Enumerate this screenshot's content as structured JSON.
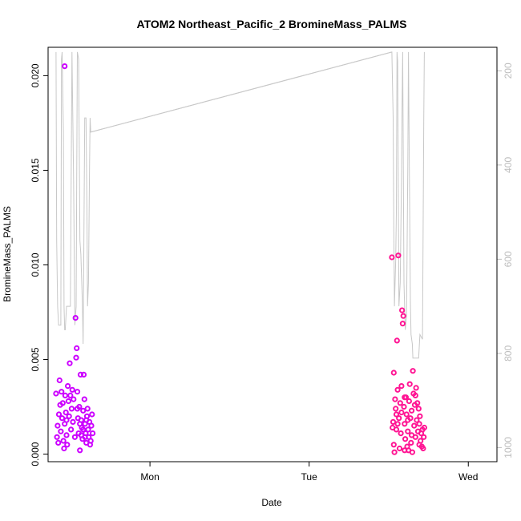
{
  "chart_data": {
    "type": "scatter",
    "title": "ATOM2 Northeast_Pacific_2 BromineMass_PALMS",
    "xlabel": "Date",
    "ylabel": "BromineMass_PALMS",
    "xlim": [
      -0.32,
      1.09
    ],
    "ylim": [
      -0.0004,
      0.0215
    ],
    "x_ticks": [
      {
        "value": 0,
        "label": "Mon"
      },
      {
        "value": 0.5,
        "label": "Tue"
      },
      {
        "value": 1,
        "label": "Wed"
      }
    ],
    "y_ticks": [
      {
        "value": 0.0,
        "label": "0.000"
      },
      {
        "value": 0.005,
        "label": "0.005"
      },
      {
        "value": 0.01,
        "label": "0.010"
      },
      {
        "value": 0.015,
        "label": "0.015"
      },
      {
        "value": 0.02,
        "label": "0.020"
      }
    ],
    "right_axis": {
      "ylim": [
        1030,
        150
      ],
      "ticks": [
        {
          "value": 200,
          "label": "200"
        },
        {
          "value": 400,
          "label": "400"
        },
        {
          "value": 600,
          "label": "600"
        },
        {
          "value": 800,
          "label": "800"
        },
        {
          "value": 1000,
          "label": "1000"
        }
      ],
      "color": "#bdbdbd"
    },
    "series": [
      {
        "kind": "points",
        "color": "#cc00ff",
        "points": [
          [
            -0.295,
            0.0032
          ],
          [
            -0.292,
            0.0009
          ],
          [
            -0.29,
            0.0015
          ],
          [
            -0.288,
            0.0006
          ],
          [
            -0.286,
            0.0021
          ],
          [
            -0.284,
            0.0039
          ],
          [
            -0.282,
            0.0026
          ],
          [
            -0.28,
            0.0012
          ],
          [
            -0.278,
            0.0033
          ],
          [
            -0.276,
            0.0019
          ],
          [
            -0.274,
            0.0027
          ],
          [
            -0.272,
            0.0007
          ],
          [
            -0.27,
            0.0003
          ],
          [
            -0.268,
            0.0016
          ],
          [
            -0.266,
            0.0031
          ],
          [
            -0.264,
            0.0022
          ],
          [
            -0.262,
            0.001
          ],
          [
            -0.26,
            0.0005
          ],
          [
            -0.258,
            0.0036
          ],
          [
            -0.256,
            0.0028
          ],
          [
            -0.254,
            0.002
          ],
          [
            -0.252,
            0.0048
          ],
          [
            -0.25,
            0.0031
          ],
          [
            -0.248,
            0.0013
          ],
          [
            -0.246,
            0.0024
          ],
          [
            -0.244,
            0.0034
          ],
          [
            -0.242,
            0.0017
          ],
          [
            -0.24,
            0.0029
          ],
          [
            -0.236,
            0.0009
          ],
          [
            -0.234,
            0.0072
          ],
          [
            -0.232,
            0.0051
          ],
          [
            -0.23,
            0.0056
          ],
          [
            -0.228,
            0.0033
          ],
          [
            -0.226,
            0.0019
          ],
          [
            -0.224,
            0.0011
          ],
          [
            -0.222,
            0.0025
          ],
          [
            -0.22,
            0.0002
          ],
          [
            -0.218,
            0.0042
          ],
          [
            -0.216,
            0.0018
          ],
          [
            -0.214,
            0.0014
          ],
          [
            -0.212,
            0.0008
          ],
          [
            -0.21,
            0.0023
          ],
          [
            -0.208,
            0.0042
          ],
          [
            -0.206,
            0.0029
          ],
          [
            -0.204,
            0.0016
          ],
          [
            -0.202,
            0.0011
          ],
          [
            -0.2,
            0.0006
          ],
          [
            -0.198,
            0.002
          ],
          [
            -0.196,
            0.0024
          ],
          [
            -0.194,
            0.0013
          ],
          [
            -0.192,
            0.0009
          ],
          [
            -0.19,
            0.0017
          ],
          [
            -0.188,
            0.0005
          ],
          [
            -0.186,
            0.0007
          ],
          [
            -0.184,
            0.0015
          ],
          [
            -0.182,
            0.0021
          ],
          [
            -0.18,
            0.0011
          ],
          [
            -0.268,
            0.0205
          ],
          [
            -0.262,
            0.0018
          ],
          [
            -0.228,
            0.0024
          ],
          [
            -0.22,
            0.0016
          ],
          [
            -0.21,
            0.0013
          ],
          [
            -0.2,
            0.0018
          ],
          [
            -0.204,
            0.0009
          ],
          [
            -0.216,
            0.001
          ]
        ]
      },
      {
        "kind": "points",
        "color": "#ff1493",
        "points": [
          [
            0.76,
            0.0104
          ],
          [
            0.762,
            0.0014
          ],
          [
            0.764,
            0.0017
          ],
          [
            0.766,
            0.0005
          ],
          [
            0.768,
            0.0001
          ],
          [
            0.77,
            0.0029
          ],
          [
            0.772,
            0.0024
          ],
          [
            0.774,
            0.0013
          ],
          [
            0.776,
            0.006
          ],
          [
            0.778,
            0.0034
          ],
          [
            0.78,
            0.0105
          ],
          [
            0.782,
            0.0019
          ],
          [
            0.784,
            0.0003
          ],
          [
            0.786,
            0.0027
          ],
          [
            0.788,
            0.0011
          ],
          [
            0.79,
            0.0036
          ],
          [
            0.792,
            0.0076
          ],
          [
            0.794,
            0.0069
          ],
          [
            0.796,
            0.0073
          ],
          [
            0.798,
            0.0025
          ],
          [
            0.8,
            0.0016
          ],
          [
            0.802,
            0.0008
          ],
          [
            0.804,
            0.003
          ],
          [
            0.806,
            0.0021
          ],
          [
            0.808,
            0.0004
          ],
          [
            0.81,
            0.0012
          ],
          [
            0.812,
            0.0002
          ],
          [
            0.814,
            0.0028
          ],
          [
            0.816,
            0.0037
          ],
          [
            0.818,
            0.0019
          ],
          [
            0.82,
            0.0006
          ],
          [
            0.822,
            0.0023
          ],
          [
            0.824,
            0.0001
          ],
          [
            0.826,
            0.0044
          ],
          [
            0.828,
            0.0032
          ],
          [
            0.83,
            0.0015
          ],
          [
            0.832,
            0.0026
          ],
          [
            0.834,
            0.0009
          ],
          [
            0.836,
            0.0035
          ],
          [
            0.838,
            0.0018
          ],
          [
            0.84,
            0.0027
          ],
          [
            0.842,
            0.0012
          ],
          [
            0.844,
            0.0024
          ],
          [
            0.846,
            0.0016
          ],
          [
            0.848,
            0.002
          ],
          [
            0.85,
            0.0007
          ],
          [
            0.852,
            0.0011
          ],
          [
            0.854,
            0.0004
          ],
          [
            0.856,
            0.0013
          ],
          [
            0.858,
            0.0003
          ],
          [
            0.86,
            0.0009
          ],
          [
            0.862,
            0.0014
          ],
          [
            0.766,
            0.0043
          ],
          [
            0.774,
            0.0021
          ],
          [
            0.79,
            0.0022
          ],
          [
            0.8,
            0.003
          ],
          [
            0.81,
            0.0018
          ],
          [
            0.822,
            0.001
          ],
          [
            0.834,
            0.0031
          ],
          [
            0.846,
            0.0005
          ],
          [
            0.778,
            0.0016
          ],
          [
            0.8,
            0.0002
          ]
        ]
      },
      {
        "kind": "line",
        "axis": "right",
        "color": "#c8c8c8",
        "points": [
          [
            -0.295,
            160
          ],
          [
            -0.293,
            560
          ],
          [
            -0.29,
            700
          ],
          [
            -0.287,
            740
          ],
          [
            -0.283,
            740
          ],
          [
            -0.28,
            740
          ],
          [
            -0.278,
            175
          ],
          [
            -0.276,
            160
          ],
          [
            -0.272,
            330
          ],
          [
            -0.27,
            700
          ],
          [
            -0.268,
            750
          ],
          [
            -0.266,
            750
          ],
          [
            -0.262,
            700
          ],
          [
            -0.258,
            700
          ],
          [
            -0.254,
            700
          ],
          [
            -0.25,
            700
          ],
          [
            -0.245,
            160
          ],
          [
            -0.24,
            430
          ],
          [
            -0.236,
            740
          ],
          [
            -0.232,
            700
          ],
          [
            -0.23,
            430
          ],
          [
            -0.228,
            160
          ],
          [
            -0.224,
            175
          ],
          [
            -0.22,
            560
          ],
          [
            -0.217,
            590
          ],
          [
            -0.212,
            700
          ],
          [
            -0.21,
            780
          ],
          [
            -0.208,
            600
          ],
          [
            -0.205,
            300
          ],
          [
            -0.201,
            300
          ],
          [
            -0.198,
            500
          ],
          [
            -0.196,
            700
          ],
          [
            -0.193,
            650
          ],
          [
            -0.19,
            420
          ],
          [
            -0.188,
            300
          ],
          [
            -0.186,
            330
          ],
          [
            0.76,
            160
          ],
          [
            0.764,
            300
          ],
          [
            0.766,
            530
          ],
          [
            0.768,
            700
          ],
          [
            0.772,
            600
          ],
          [
            0.774,
            500
          ],
          [
            0.776,
            160
          ],
          [
            0.778,
            180
          ],
          [
            0.782,
            700
          ],
          [
            0.786,
            650
          ],
          [
            0.79,
            430
          ],
          [
            0.792,
            280
          ],
          [
            0.794,
            160
          ],
          [
            0.798,
            650
          ],
          [
            0.802,
            750
          ],
          [
            0.806,
            720
          ],
          [
            0.81,
            400
          ],
          [
            0.812,
            160
          ],
          [
            0.815,
            430
          ],
          [
            0.818,
            690
          ],
          [
            0.82,
            760
          ],
          [
            0.824,
            780
          ],
          [
            0.826,
            810
          ],
          [
            0.835,
            810
          ],
          [
            0.84,
            810
          ],
          [
            0.844,
            810
          ],
          [
            0.848,
            760
          ],
          [
            0.856,
            770
          ],
          [
            0.86,
            300
          ],
          [
            0.862,
            160
          ]
        ],
        "bridge": [
          [
            -0.186,
            330
          ],
          [
            0.76,
            160
          ]
        ]
      }
    ]
  }
}
